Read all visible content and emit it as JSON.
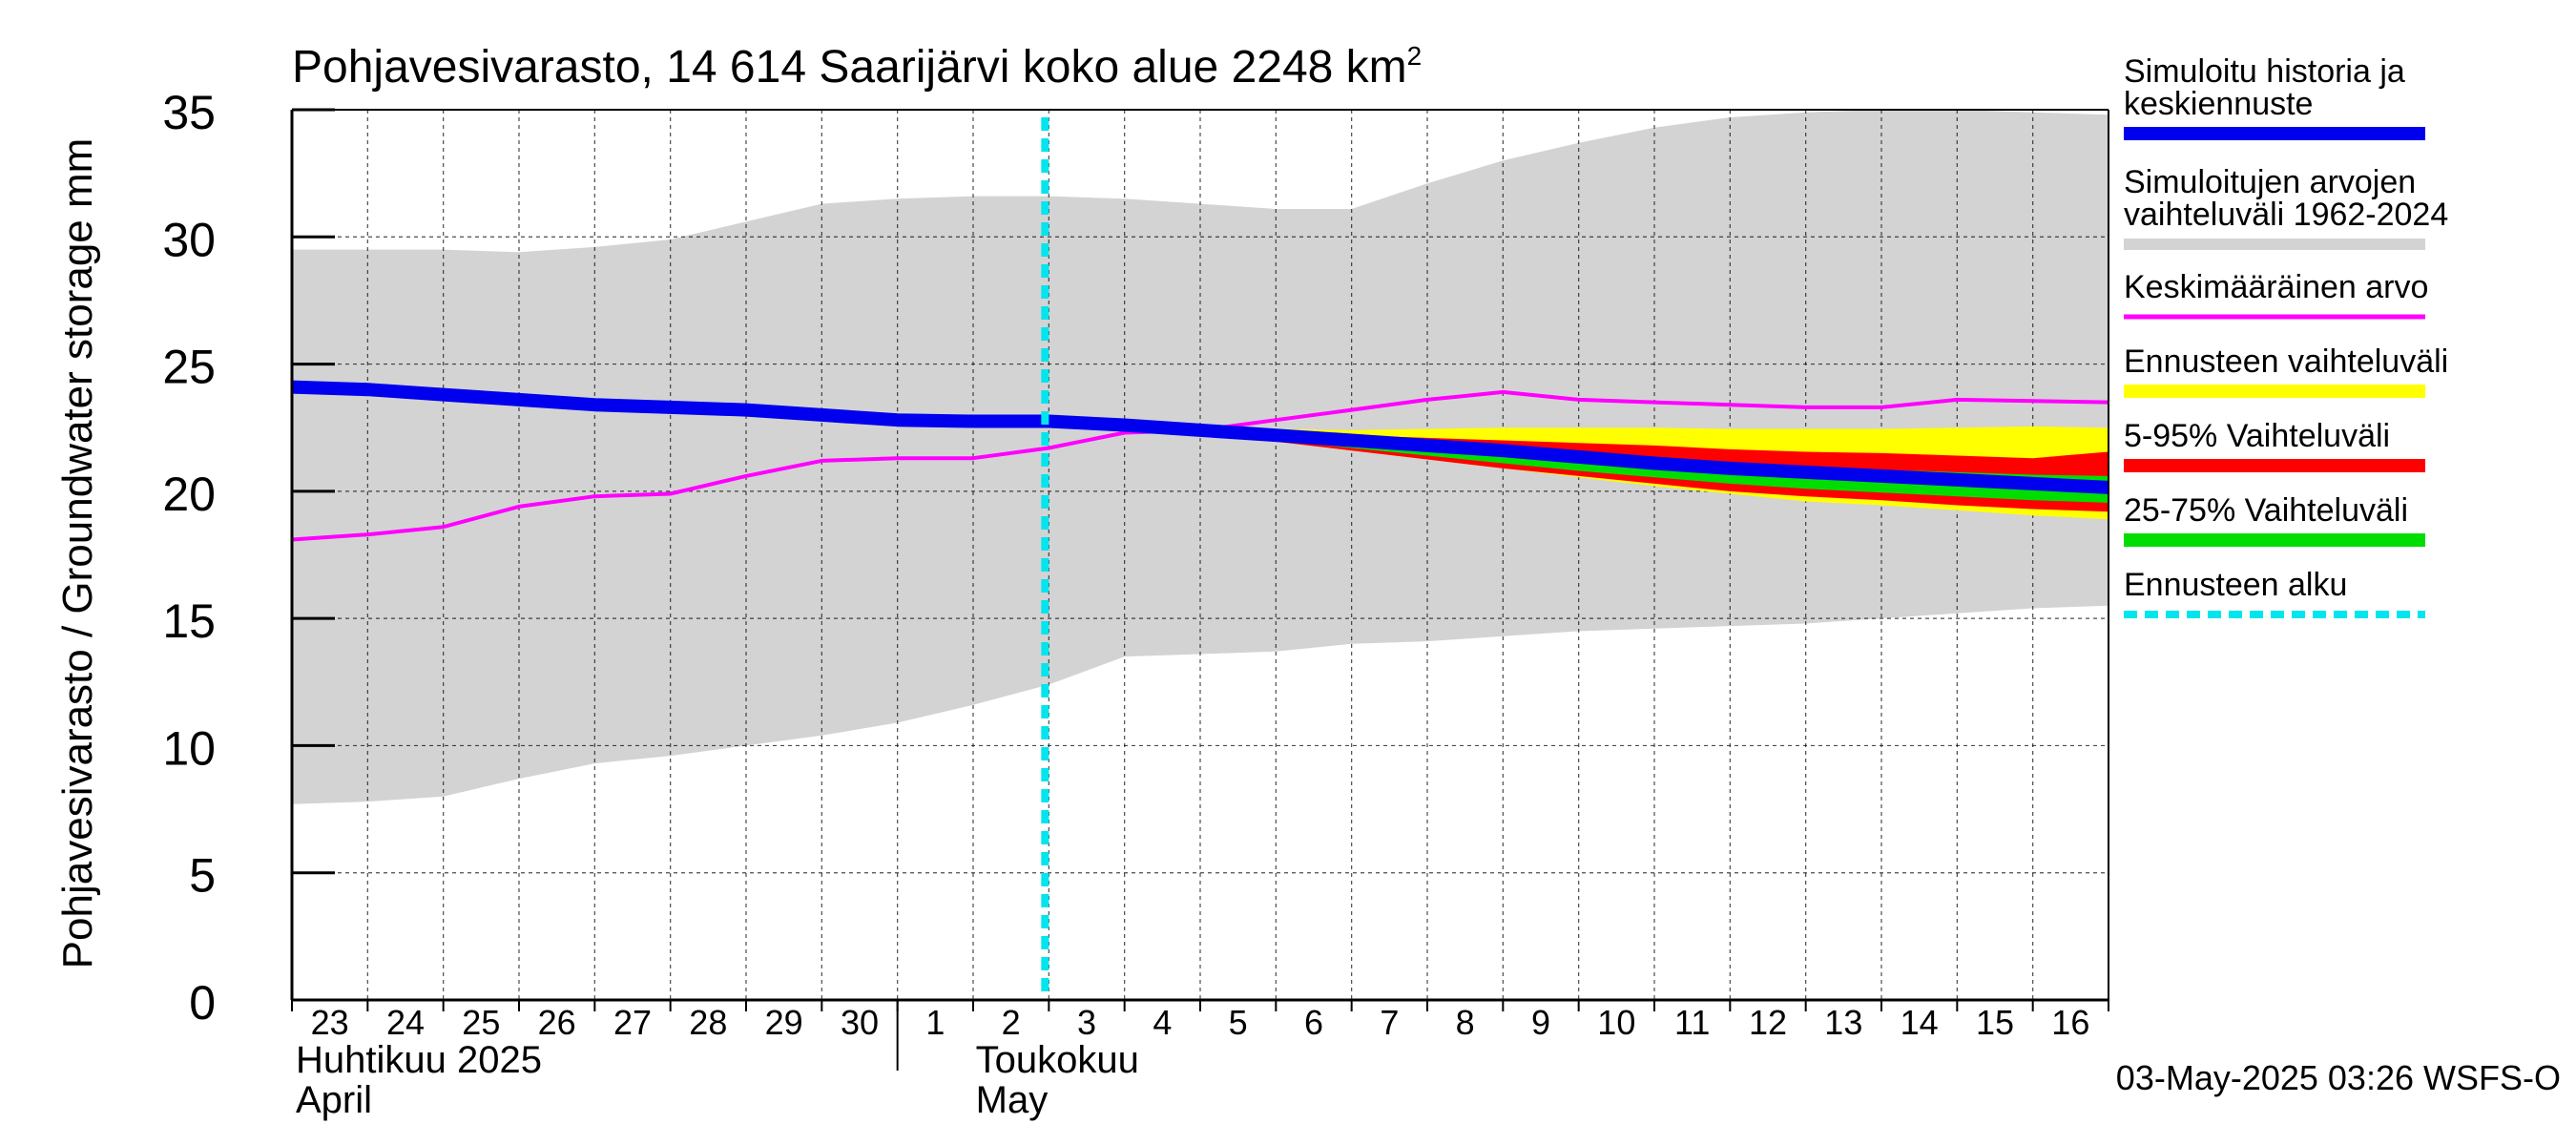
{
  "chart_data": {
    "type": "line",
    "title": "Pohjavesivarasto, 14 614 Saarijärvi koko alue 2248 km",
    "title_superscript": "2",
    "ylabel": "Pohjavesivarasto / Groundwater storage   mm",
    "ylim": [
      0,
      35
    ],
    "yticks": [
      "0",
      "5",
      "10",
      "15",
      "20",
      "25",
      "30",
      "35"
    ],
    "x_day_labels": [
      "23",
      "24",
      "25",
      "26",
      "27",
      "28",
      "29",
      "30",
      "1",
      "2",
      "3",
      "4",
      "5",
      "6",
      "7",
      "8",
      "9",
      "10",
      "11",
      "12",
      "13",
      "14",
      "15",
      "16"
    ],
    "month_labels": {
      "april_fi": "Huhtikuu  2025",
      "april_en": "April",
      "may_fi": "Toukokuu",
      "may_en": "May"
    },
    "grid": true,
    "forecast_start_day_index": 10,
    "series": [
      {
        "name": "Simuloitujen arvojen vaihteluväli 1962-2024",
        "color": "#d3d3d3",
        "lower": [
          7.7,
          7.8,
          8.0,
          8.7,
          9.3,
          9.6,
          10.0,
          10.4,
          10.9,
          11.6,
          12.4,
          13.5,
          13.6,
          13.7,
          14.0,
          14.1,
          14.3,
          14.5,
          14.6,
          14.7,
          14.8,
          15.0,
          15.2,
          15.4,
          15.5
        ],
        "upper": [
          29.5,
          29.5,
          29.5,
          29.4,
          29.6,
          29.9,
          30.6,
          31.3,
          31.5,
          31.6,
          31.6,
          31.5,
          31.3,
          31.1,
          31.1,
          32.1,
          33.0,
          33.7,
          34.3,
          34.7,
          34.9,
          35.0,
          35.0,
          34.9,
          34.8
        ]
      },
      {
        "name": "Ennusteen vaihteluväli",
        "color": "#ffff00",
        "lower": [
          null,
          null,
          null,
          null,
          null,
          null,
          null,
          null,
          null,
          null,
          22.75,
          22.55,
          22.3,
          21.95,
          21.6,
          21.25,
          20.9,
          20.55,
          20.2,
          19.9,
          19.6,
          19.45,
          19.25,
          19.05,
          18.9
        ],
        "upper": [
          null,
          null,
          null,
          null,
          null,
          null,
          null,
          null,
          null,
          null,
          22.75,
          22.7,
          22.55,
          22.45,
          22.4,
          22.45,
          22.5,
          22.5,
          22.5,
          22.45,
          22.45,
          22.45,
          22.5,
          22.55,
          22.5
        ]
      },
      {
        "name": "5-95% Vaihteluväli",
        "color": "#ff0000",
        "lower": [
          null,
          null,
          null,
          null,
          null,
          null,
          null,
          null,
          null,
          null,
          22.75,
          22.55,
          22.3,
          21.95,
          21.6,
          21.25,
          20.9,
          20.6,
          20.3,
          20.0,
          19.8,
          19.65,
          19.45,
          19.3,
          19.2
        ],
        "upper": [
          null,
          null,
          null,
          null,
          null,
          null,
          null,
          null,
          null,
          null,
          22.75,
          22.6,
          22.45,
          22.3,
          22.2,
          22.1,
          22.0,
          21.9,
          21.8,
          21.65,
          21.55,
          21.5,
          21.4,
          21.3,
          21.55
        ]
      },
      {
        "name": "25-75% Vaihteluväli",
        "color": "#00dd00",
        "lower": [
          null,
          null,
          null,
          null,
          null,
          null,
          null,
          null,
          null,
          null,
          22.75,
          22.55,
          22.3,
          22.0,
          21.7,
          21.4,
          21.1,
          20.8,
          20.55,
          20.3,
          20.1,
          19.95,
          19.8,
          19.65,
          19.55
        ],
        "upper": [
          null,
          null,
          null,
          null,
          null,
          null,
          null,
          null,
          null,
          null,
          22.75,
          22.6,
          22.4,
          22.2,
          22.0,
          21.8,
          21.6,
          21.4,
          21.25,
          21.1,
          20.95,
          20.85,
          20.75,
          20.65,
          20.6
        ]
      },
      {
        "name": "Simuloitu historia ja keskiennuste",
        "color": "#0000ee",
        "values": [
          24.1,
          24.0,
          23.8,
          23.6,
          23.4,
          23.3,
          23.2,
          23.0,
          22.8,
          22.75,
          22.75,
          22.6,
          22.4,
          22.2,
          22.0,
          21.8,
          21.6,
          21.35,
          21.1,
          20.9,
          20.75,
          20.6,
          20.45,
          20.3,
          20.15
        ]
      },
      {
        "name": "Keskimääräinen arvo",
        "color": "#ff00ff",
        "values": [
          18.1,
          18.3,
          18.6,
          19.4,
          19.8,
          19.9,
          20.6,
          21.2,
          21.3,
          21.3,
          21.7,
          22.3,
          22.4,
          22.8,
          23.2,
          23.6,
          23.9,
          23.6,
          23.5,
          23.4,
          23.3,
          23.3,
          23.6,
          23.55,
          23.5
        ]
      }
    ]
  },
  "legend": {
    "items": [
      {
        "label": "Simuloitu historia ja keskiennuste",
        "color": "#0000ee"
      },
      {
        "label": "Simuloitujen arvojen vaihteluväli 1962-2024",
        "color": "#d3d3d3"
      },
      {
        "label": "Keskimääräinen arvo",
        "color": "#ff00ff"
      },
      {
        "label": "Ennusteen vaihteluväli",
        "color": "#ffff00"
      },
      {
        "label": "5-95% Vaihteluväli",
        "color": "#ff0000"
      },
      {
        "label": "25-75% Vaihteluväli",
        "color": "#00dd00"
      },
      {
        "label": "Ennusteen alku",
        "color": "#00e5ee"
      }
    ]
  },
  "timestamp": "03-May-2025 03:26 WSFS-O"
}
